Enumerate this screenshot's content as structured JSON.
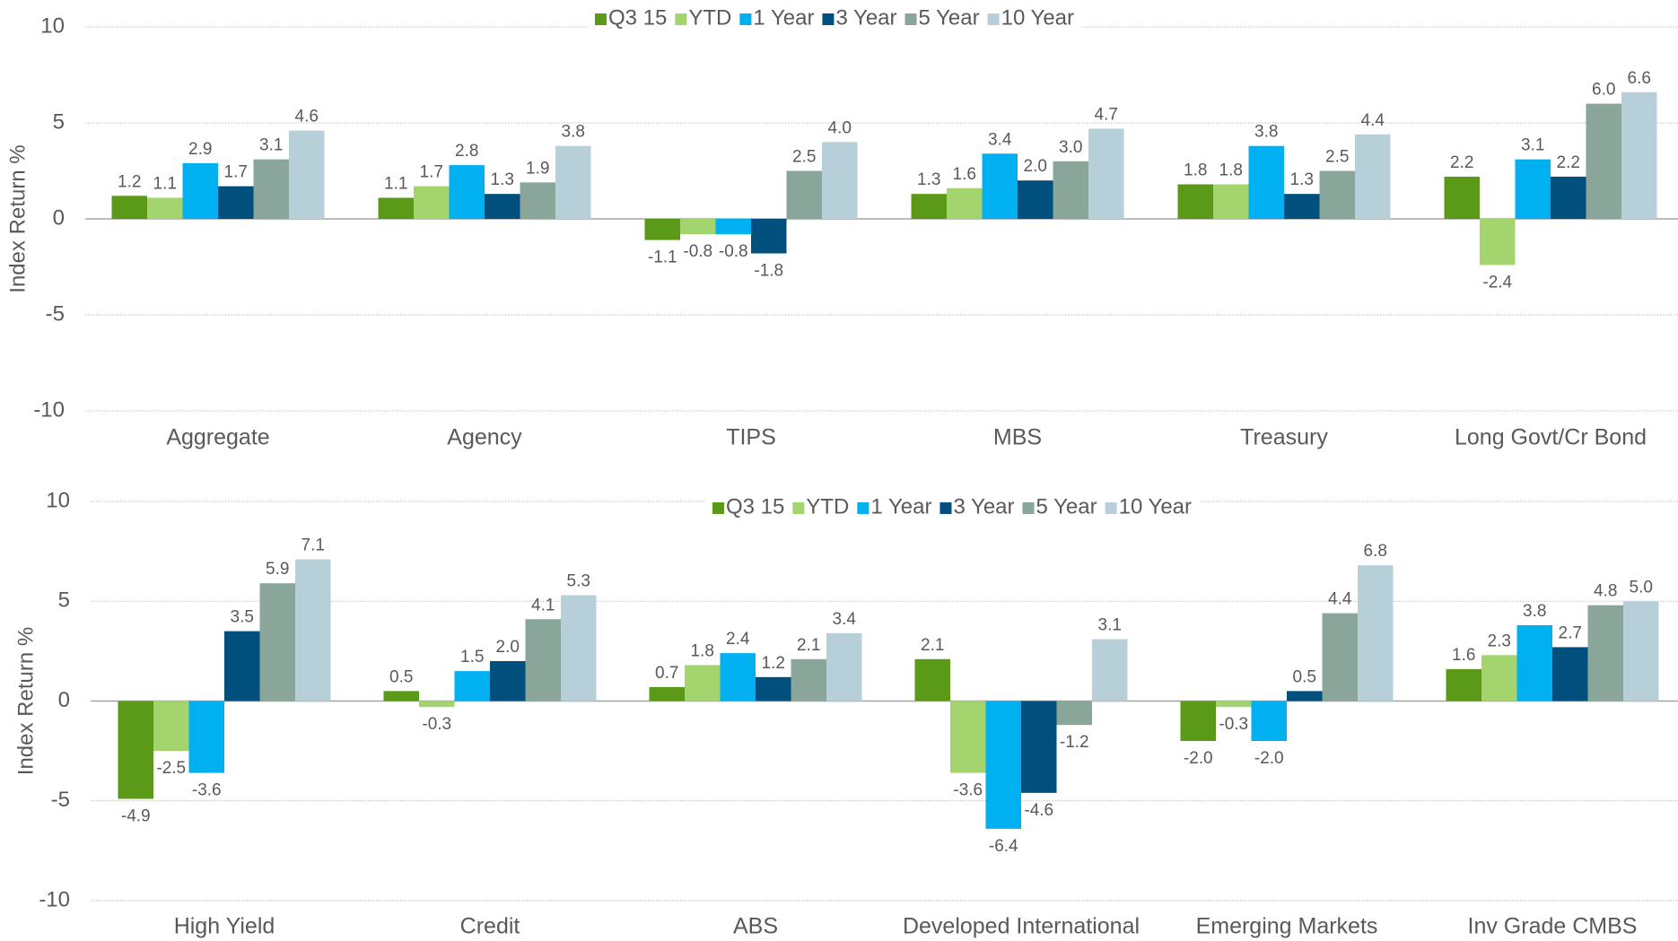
{
  "chart_data": [
    {
      "type": "bar",
      "y_label": "Index Return %",
      "legend": "top",
      "grid": true,
      "categories": [
        "Aggregate",
        "Agency",
        "TIPS",
        "MBS",
        "Treasury",
        "Long Govt/Cr Bond"
      ],
      "ylim": [
        -10,
        10
      ],
      "yticks": [
        10,
        5,
        0,
        -5,
        -10
      ],
      "series": [
        {
          "name": "Q3 15",
          "color": "#5a9a18",
          "values": [
            1.2,
            1.1,
            -1.1,
            1.3,
            1.8,
            2.2
          ],
          "value_labels": [
            "1.2",
            "1.1",
            "-1.1",
            "1.3",
            "1.8",
            "2.2"
          ]
        },
        {
          "name": "YTD",
          "color": "#a3d46e",
          "values": [
            1.1,
            1.7,
            -0.8,
            1.6,
            1.8,
            -2.4
          ],
          "value_labels": [
            "1.1",
            "1.7",
            "-0.8",
            "1.6",
            "1.8",
            "-2.4"
          ]
        },
        {
          "name": "1 Year",
          "color": "#00b0f0",
          "values": [
            2.9,
            2.8,
            -0.8,
            3.4,
            3.8,
            3.1
          ],
          "value_labels": [
            "2.9",
            "2.8",
            "-0.8",
            "3.4",
            "3.8",
            "3.1"
          ]
        },
        {
          "name": "3 Year",
          "color": "#004f7c",
          "values": [
            1.7,
            1.3,
            -1.8,
            2,
            1.3,
            2.2
          ],
          "value_labels": [
            "1.7",
            "1.3",
            "-1.8",
            "2.0",
            "1.3",
            "2.2"
          ]
        },
        {
          "name": "5 Year",
          "color": "#8aa69a",
          "values": [
            3.1,
            1.9,
            2.5,
            3,
            2.5,
            6
          ],
          "value_labels": [
            "3.1",
            "1.9",
            "2.5",
            "3.0",
            "2.5",
            "6.0"
          ]
        },
        {
          "name": "10 Year",
          "color": "#b7cfd9",
          "values": [
            4.6,
            3.8,
            4,
            4.7,
            4.4,
            6.6
          ],
          "value_labels": [
            "4.6",
            "3.8",
            "4.0",
            "4.7",
            "4.4",
            "6.6"
          ]
        }
      ]
    },
    {
      "type": "bar",
      "y_label": "Index Return %",
      "legend": "top",
      "grid": true,
      "categories": [
        "High Yield",
        "Credit",
        "ABS",
        "Developed International",
        "Emerging Markets",
        "Inv Grade CMBS"
      ],
      "ylim": [
        -10,
        10
      ],
      "yticks": [
        10,
        5,
        0,
        -5,
        -10
      ],
      "series": [
        {
          "name": "Q3 15",
          "color": "#5a9a18",
          "values": [
            -4.9,
            0.5,
            0.7,
            2.1,
            -2,
            1.6
          ],
          "value_labels": [
            "-4.9",
            "0.5",
            "0.7",
            "2.1",
            "-2.0",
            "1.6"
          ]
        },
        {
          "name": "YTD",
          "color": "#a3d46e",
          "values": [
            -2.5,
            -0.3,
            1.8,
            -3.6,
            -0.3,
            2.3
          ],
          "value_labels": [
            "-2.5",
            "-0.3",
            "1.8",
            "-3.6",
            "-0.3",
            "2.3"
          ]
        },
        {
          "name": "1 Year",
          "color": "#00b0f0",
          "values": [
            -3.6,
            1.5,
            2.4,
            -6.4,
            -2,
            3.8
          ],
          "value_labels": [
            "-3.6",
            "1.5",
            "2.4",
            "-6.4",
            "-2.0",
            "3.8"
          ]
        },
        {
          "name": "3 Year",
          "color": "#004f7c",
          "values": [
            3.5,
            2,
            1.2,
            -4.6,
            0.5,
            2.7
          ],
          "value_labels": [
            "3.5",
            "2.0",
            "1.2",
            "-4.6",
            "0.5",
            "2.7"
          ]
        },
        {
          "name": "5 Year",
          "color": "#8aa69a",
          "values": [
            5.9,
            4.1,
            2.1,
            -1.2,
            4.4,
            4.8
          ],
          "value_labels": [
            "5.9",
            "4.1",
            "2.1",
            "-1.2",
            "4.4",
            "4.8"
          ]
        },
        {
          "name": "10 Year",
          "color": "#b7cfd9",
          "values": [
            7.1,
            5.3,
            3.4,
            3.1,
            6.8,
            5
          ],
          "value_labels": [
            "7.1",
            "5.3",
            "3.4",
            "3.1",
            "6.8",
            "5.0"
          ]
        }
      ]
    }
  ]
}
